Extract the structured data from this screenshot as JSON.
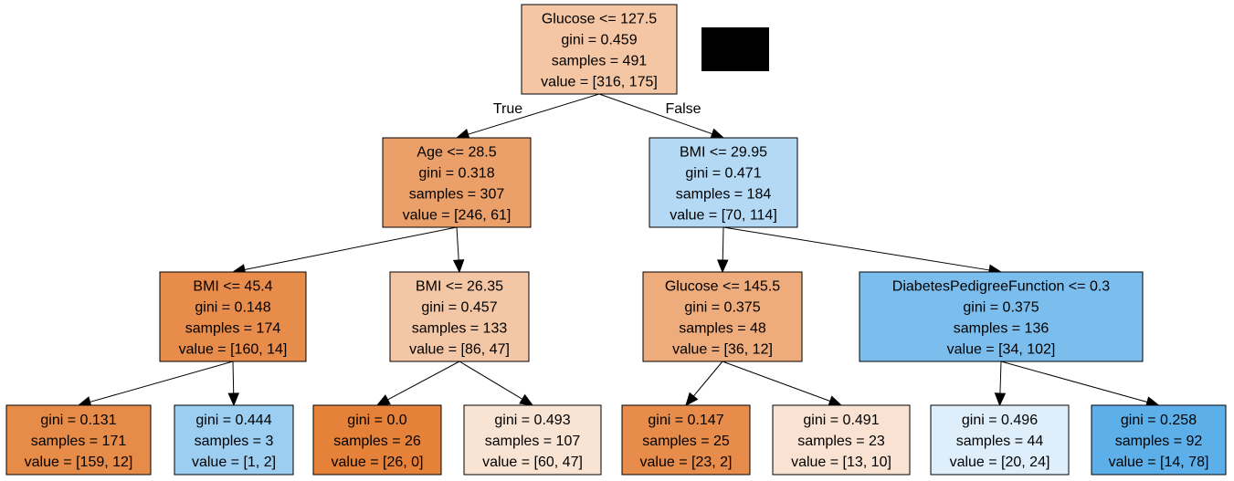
{
  "nodes": [
    {
      "id": "n0",
      "lines": [
        "Glucose <= 127.5",
        "gini = 0.459",
        "samples = 491",
        "value = [316, 175]"
      ],
      "fill": "#f4c6a4"
    },
    {
      "id": "n1",
      "lines": [
        "Age <= 28.5",
        "gini = 0.318",
        "samples = 307",
        "value = [246, 61]"
      ],
      "fill": "#eba06a"
    },
    {
      "id": "n2",
      "lines": [
        "BMI <= 29.95",
        "gini = 0.471",
        "samples = 184",
        "value = [70, 114]"
      ],
      "fill": "#b3d9f5"
    },
    {
      "id": "n3",
      "lines": [
        "BMI <= 45.4",
        "gini = 0.148",
        "samples = 174",
        "value = [160, 14]"
      ],
      "fill": "#e78c4a"
    },
    {
      "id": "n4",
      "lines": [
        "BMI <= 26.35",
        "gini = 0.457",
        "samples = 133",
        "value = [86, 47]"
      ],
      "fill": "#f3c6a5"
    },
    {
      "id": "n5",
      "lines": [
        "Glucose <= 145.5",
        "gini = 0.375",
        "samples = 48",
        "value = [36, 12]"
      ],
      "fill": "#eeab7b"
    },
    {
      "id": "n6",
      "lines": [
        "DiabetesPedigreeFunction <= 0.3",
        "gini = 0.375",
        "samples = 136",
        "value = [34, 102]"
      ],
      "fill": "#7bbeee"
    },
    {
      "id": "n7",
      "lines": [
        "gini = 0.131",
        "samples = 171",
        "value = [159, 12]"
      ],
      "fill": "#e78b48"
    },
    {
      "id": "n8",
      "lines": [
        "gini = 0.444",
        "samples = 3",
        "value = [1, 2]"
      ],
      "fill": "#9ccef2"
    },
    {
      "id": "n9",
      "lines": [
        "gini = 0.0",
        "samples = 26",
        "value = [26, 0]"
      ],
      "fill": "#e58139"
    },
    {
      "id": "n10",
      "lines": [
        "gini = 0.493",
        "samples = 107",
        "value = [60, 47]"
      ],
      "fill": "#f9e4d4"
    },
    {
      "id": "n11",
      "lines": [
        "gini = 0.147",
        "samples = 25",
        "value = [23, 2]"
      ],
      "fill": "#e78c4a"
    },
    {
      "id": "n12",
      "lines": [
        "gini = 0.491",
        "samples = 23",
        "value = [13, 10]"
      ],
      "fill": "#f9e2d1"
    },
    {
      "id": "n13",
      "lines": [
        "gini = 0.496",
        "samples = 44",
        "value = [20, 24]"
      ],
      "fill": "#deeffb"
    },
    {
      "id": "n14",
      "lines": [
        "gini = 0.258",
        "samples = 92",
        "value = [14, 78]"
      ],
      "fill": "#5dafea"
    }
  ],
  "edges": [
    {
      "from": "n0",
      "to": "n1",
      "label": "True"
    },
    {
      "from": "n0",
      "to": "n2",
      "label": "False"
    },
    {
      "from": "n1",
      "to": "n3",
      "label": ""
    },
    {
      "from": "n1",
      "to": "n4",
      "label": ""
    },
    {
      "from": "n2",
      "to": "n5",
      "label": ""
    },
    {
      "from": "n2",
      "to": "n6",
      "label": ""
    },
    {
      "from": "n3",
      "to": "n7",
      "label": ""
    },
    {
      "from": "n3",
      "to": "n8",
      "label": ""
    },
    {
      "from": "n4",
      "to": "n9",
      "label": ""
    },
    {
      "from": "n4",
      "to": "n10",
      "label": ""
    },
    {
      "from": "n5",
      "to": "n11",
      "label": ""
    },
    {
      "from": "n5",
      "to": "n12",
      "label": ""
    },
    {
      "from": "n6",
      "to": "n13",
      "label": ""
    },
    {
      "from": "n6",
      "to": "n14",
      "label": ""
    }
  ],
  "redaction_color": "#000000"
}
